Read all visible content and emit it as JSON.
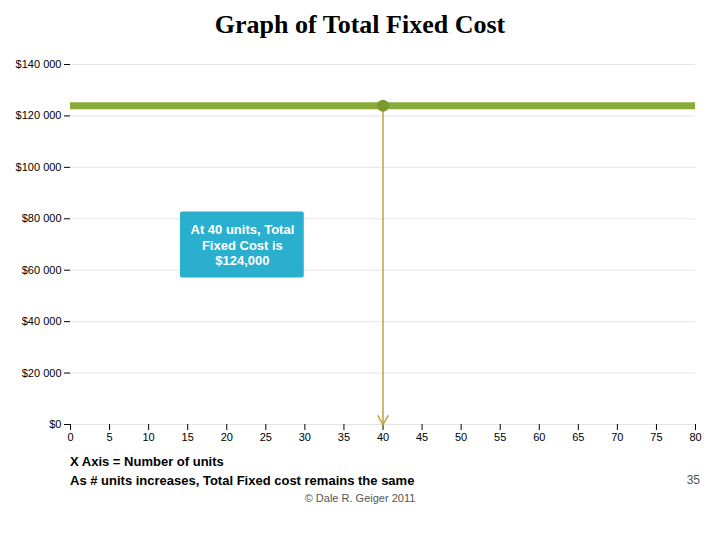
{
  "chart_data": {
    "type": "line",
    "title": "Graph of Total Fixed Cost",
    "x": [
      0,
      80
    ],
    "values": [
      124000,
      124000
    ],
    "color": "#8AAA3A",
    "highlight": {
      "x": 40,
      "y": 124000,
      "color": "#7A9A30",
      "arrow_color": "#C8A040"
    },
    "annotations": [
      {
        "text": "At 40 units, Total\nFixed Cost is\n$124,000",
        "x": 22,
        "y": 70000,
        "color": "#2AAFCF"
      }
    ],
    "xlabel": "X Axis = Number of units",
    "footer": "As # units increases, Total Fixed cost remains the same",
    "copyright": "© Dale R. Geiger 2011",
    "page_number": "35",
    "xlim": [
      0,
      80
    ],
    "ylim": [
      0,
      140000
    ],
    "xticks": [
      0,
      5,
      10,
      15,
      20,
      25,
      30,
      35,
      40,
      45,
      50,
      55,
      60,
      65,
      70,
      75,
      80
    ],
    "yticks": [
      {
        "value": 0,
        "label": "$0"
      },
      {
        "value": 20000,
        "label": "$20 000"
      },
      {
        "value": 40000,
        "label": "$40 000"
      },
      {
        "value": 60000,
        "label": "$60 000"
      },
      {
        "value": 80000,
        "label": "$80 000"
      },
      {
        "value": 100000,
        "label": "$100 000"
      },
      {
        "value": 120000,
        "label": "$120 000"
      },
      {
        "value": 140000,
        "label": "$140 000"
      }
    ],
    "grid": "y"
  }
}
